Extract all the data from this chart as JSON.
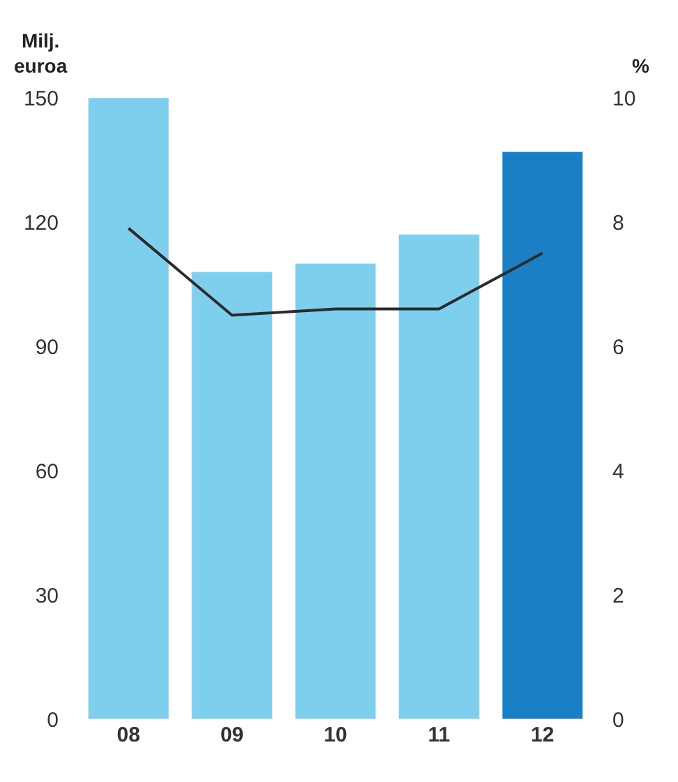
{
  "chart_data": {
    "type": "bar",
    "categories": [
      "08",
      "09",
      "10",
      "11",
      "12"
    ],
    "ylabel": "Milj. euroa",
    "y2label": "%",
    "series": [
      {
        "colors": [
          "#7dcfed",
          "#7dcfed",
          "#7dcfed",
          "#7dcfed",
          "#1a7fc4"
        ],
        "values": [
          150,
          108,
          110,
          117,
          137
        ]
      },
      {
        "type": "line",
        "axis": "y2",
        "color": "#2b2b2b",
        "values": [
          7.9,
          6.5,
          6.6,
          6.6,
          7.5
        ]
      }
    ],
    "ylim": [
      0,
      150
    ],
    "yticks": [
      0,
      30,
      60,
      90,
      120,
      150
    ],
    "y2lim": [
      0,
      10
    ],
    "y2ticks": [
      0,
      2,
      4,
      6,
      8,
      10
    ],
    "marker": "none",
    "line_style": "solid"
  }
}
